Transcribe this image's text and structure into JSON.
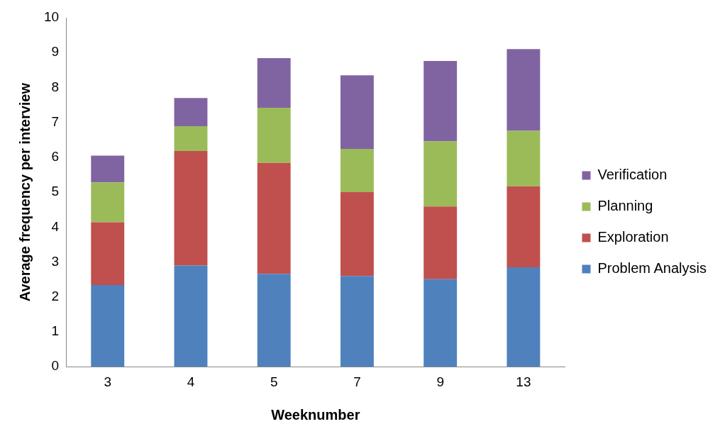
{
  "chart_data": {
    "type": "bar",
    "xlabel": "Weeknumber",
    "ylabel": "Average frequency per interview",
    "categories": [
      "3",
      "4",
      "5",
      "7",
      "9",
      "13"
    ],
    "stacked": true,
    "ylim": [
      0,
      10
    ],
    "yticks": [
      0,
      1,
      2,
      3,
      4,
      5,
      6,
      7,
      8,
      9,
      10
    ],
    "grid": false,
    "legend": "right",
    "series": [
      {
        "name": "Problem Analysis",
        "color": "#4f81bd",
        "values": [
          2.34,
          2.9,
          2.66,
          2.6,
          2.51,
          2.85
        ]
      },
      {
        "name": "Exploration",
        "color": "#c0504d",
        "values": [
          1.8,
          3.28,
          3.18,
          2.4,
          2.08,
          2.32
        ]
      },
      {
        "name": "Planning",
        "color": "#9bbb59",
        "values": [
          1.14,
          0.71,
          1.58,
          1.24,
          1.87,
          1.59
        ]
      },
      {
        "name": "Verification",
        "color": "#8064a2",
        "values": [
          0.77,
          0.81,
          1.42,
          2.11,
          2.3,
          2.34
        ]
      }
    ]
  }
}
